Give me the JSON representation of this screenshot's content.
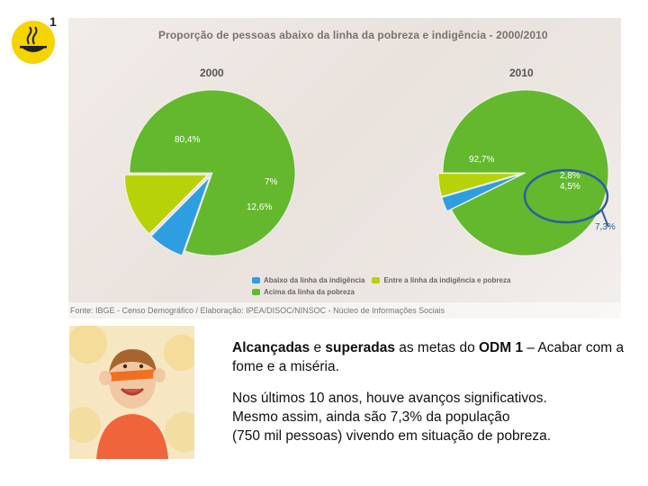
{
  "slide_number": "1",
  "chart_data": {
    "type": "pie",
    "title": "Proporção de pessoas abaixo da linha da pobreza e indigência - 2000/2010",
    "pies": [
      {
        "name": "2000",
        "slices": [
          {
            "label": "80,4%",
            "value": 80.4,
            "category": "Acima da linha da pobreza"
          },
          {
            "label": "7%",
            "value": 7.0,
            "category": "Abaixo da linha da indigência"
          },
          {
            "label": "12,6%",
            "value": 12.6,
            "category": "Entre a linha da indigência e pobreza"
          }
        ]
      },
      {
        "name": "2010",
        "slices": [
          {
            "label": "92,7%",
            "value": 92.7,
            "category": "Acima da linha da pobreza"
          },
          {
            "label": "2,8%",
            "value": 2.8,
            "category": "Abaixo da linha da indigência"
          },
          {
            "label": "4,5%",
            "value": 4.5,
            "category": "Entre a linha da indigência e pobreza"
          }
        ]
      }
    ],
    "annotation": "7,3%",
    "legend": [
      {
        "label": "Abaixo da linha da indigência",
        "color": "#2e9ee0"
      },
      {
        "label": "Entre a linha da indigência e pobreza",
        "color": "#b8d20a"
      },
      {
        "label": "Acima da linha da pobreza",
        "color": "#63b82e"
      }
    ],
    "legend_position": "bottom-center",
    "source": "Fonte: IBGE - Censo Demográfico / Elaboração: IPEA/DISOC/NINSOC - Núcleo de Informações Sociais"
  },
  "text": {
    "p1": {
      "a": "Alcançadas",
      "b": " e ",
      "c": "superadas",
      "d": " as metas do ",
      "e": "ODM 1",
      "f": " – Acabar com a fome e a miséria."
    },
    "p2": {
      "line1": "Nos últimos 10 anos, houve avanços significativos.",
      "line2": "Mesmo assim, ainda são 7,3% da população",
      "line3": "(750 mil pessoas) vivendo em situação de pobreza."
    }
  },
  "colors": {
    "above": "#63b82e",
    "below_indigence": "#2e9ee0",
    "between": "#b8d20a",
    "logo_yellow": "#f5d400",
    "annotation_circle": "#2c5fa0"
  }
}
